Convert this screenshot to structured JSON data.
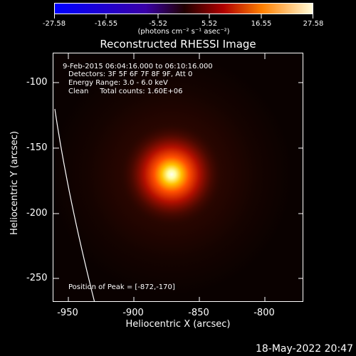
{
  "colorbar": {
    "tick_labels": [
      "-27.58",
      "-16.55",
      "-5.52",
      "5.52",
      "16.55",
      "27.58"
    ],
    "unit_label": "(photons cm⁻² s⁻¹ asec⁻²)"
  },
  "plot": {
    "title": "Reconstructed RHESSI Image",
    "info_lines": [
      "9-Feb-2015 06:04:16.000 to 06:10:16.000",
      "Detectors: 3F 5F 6F 7F 8F 9F, Att 0",
      "Energy Range: 3.0 - 6.0 keV",
      "Clean     Total counts: 1.60E+06"
    ],
    "peak_text": "Position of Peak = [-872,-170]",
    "y_ticks": [
      "-100",
      "-150",
      "-200",
      "-250"
    ],
    "x_ticks": [
      "-950",
      "-900",
      "-850",
      "-800"
    ],
    "y_label": "Heliocentric Y (arcsec)",
    "x_label": "Heliocentric X (arcsec)"
  },
  "timestamp": "18-May-2022 20:47"
}
